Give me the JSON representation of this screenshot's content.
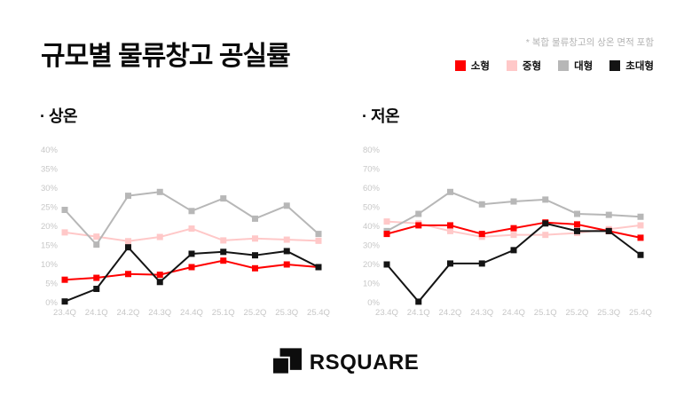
{
  "page": {
    "title": "규모별 물류창고 공실률",
    "footnote": "* 복합 물류창고의 상온 면적 포함"
  },
  "legend": [
    {
      "label": "소형",
      "color": "#ff0000"
    },
    {
      "label": "중형",
      "color": "#ffc8c8"
    },
    {
      "label": "대형",
      "color": "#b7b7b7"
    },
    {
      "label": "초대형",
      "color": "#141414"
    }
  ],
  "brand": {
    "logo_text": "RSQUARE"
  },
  "chart_data": [
    {
      "type": "line",
      "title": "· 상온",
      "categories": [
        "23.4Q",
        "24.1Q",
        "24.2Q",
        "24.3Q",
        "24.4Q",
        "25.1Q",
        "25.2Q",
        "25.3Q",
        "25.4Q"
      ],
      "ylim": [
        0,
        40
      ],
      "ytick": 5,
      "grid": false,
      "legend_position": "top-right",
      "series": [
        {
          "name": "소형",
          "color": "#ff0000",
          "values": [
            6,
            6.5,
            7.5,
            7.3,
            9.3,
            11,
            9,
            10,
            9.3
          ]
        },
        {
          "name": "중형",
          "color": "#ffc8c8",
          "values": [
            18.4,
            17.3,
            16.1,
            17.2,
            19.4,
            16.3,
            16.8,
            16.5,
            16.2
          ]
        },
        {
          "name": "대형",
          "color": "#b7b7b7",
          "values": [
            24.3,
            15.2,
            28,
            29,
            24,
            27.3,
            22,
            25.4,
            18
          ]
        },
        {
          "name": "초대형",
          "color": "#141414",
          "values": [
            0.3,
            3.6,
            14.5,
            5.4,
            12.8,
            13.3,
            12.4,
            13.5,
            9.3
          ]
        }
      ]
    },
    {
      "type": "line",
      "title": "· 저온",
      "categories": [
        "23.4Q",
        "24.1Q",
        "24.2Q",
        "24.3Q",
        "24.4Q",
        "25.1Q",
        "25.2Q",
        "25.3Q",
        "25.4Q"
      ],
      "ylim": [
        0,
        80
      ],
      "ytick": 10,
      "grid": false,
      "legend_position": "top-right",
      "series": [
        {
          "name": "소형",
          "color": "#ff0000",
          "values": [
            36,
            40.5,
            40.5,
            36,
            39,
            42,
            41,
            37.5,
            34
          ]
        },
        {
          "name": "중형",
          "color": "#ffc8c8",
          "values": [
            42.5,
            41.5,
            37.5,
            34.5,
            35.5,
            35.5,
            36.5,
            38.5,
            40.5
          ]
        },
        {
          "name": "대형",
          "color": "#b7b7b7",
          "values": [
            37.5,
            46.5,
            58,
            51.5,
            53,
            54,
            46.5,
            46,
            45
          ]
        },
        {
          "name": "초대형",
          "color": "#141414",
          "values": [
            20,
            0.5,
            20.5,
            20.5,
            27.5,
            41.5,
            37.5,
            37.5,
            25
          ]
        }
      ]
    }
  ]
}
